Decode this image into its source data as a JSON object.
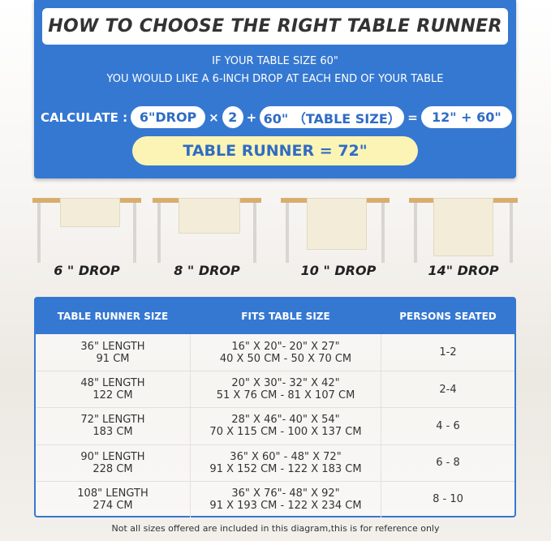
{
  "title": "HOW TO CHOOSE THE RIGHT TABLE RUNNER",
  "line1": "IF YOUR TABLE SIZE 60\"",
  "line2": "YOU WOULD LIKE A 6-INCH DROP AT EACH END OF YOUR TABLE",
  "calc": {
    "label": "CALCULATE :",
    "drop": "6\"DROP",
    "times": "×",
    "two": "2",
    "plus": "+",
    "table": "60\" （TABLE SIZE）",
    "equals": "=",
    "result": "12\" + 60\""
  },
  "runner": "TABLE RUNNER = 72\"",
  "drops": [
    "6 \" DROP",
    "8 \" DROP",
    "10 \" DROP",
    "14\" DROP"
  ],
  "table": {
    "headers": [
      "TABLE RUNNER SIZE",
      "FITS TABLE SIZE",
      "PERSONS SEATED"
    ],
    "rows": [
      {
        "len": "36\" LENGTH",
        "cm": "91 CM",
        "fit_in": "16\" X 20\"- 20\" X 27\"",
        "fit_cm": "40 X 50 CM - 50 X 70 CM",
        "persons": "1-2"
      },
      {
        "len": "48\" LENGTH",
        "cm": "122 CM",
        "fit_in": "20\" X 30\"- 32\" X 42\"",
        "fit_cm": "51 X 76 CM - 81 X 107 CM",
        "persons": "2-4"
      },
      {
        "len": "72\" LENGTH",
        "cm": "183 CM",
        "fit_in": "28\" X 46\"- 40\" X 54\"",
        "fit_cm": "70 X 115 CM - 100 X 137 CM",
        "persons": "4 - 6"
      },
      {
        "len": "90\" LENGTH",
        "cm": "228 CM",
        "fit_in": "36\" X 60\" - 48\" X 72\"",
        "fit_cm": "91 X 152 CM - 122 X 183 CM",
        "persons": "6 - 8"
      },
      {
        "len": "108\" LENGTH",
        "cm": "274 CM",
        "fit_in": "36\" X 76\"- 48\" X 92\"",
        "fit_cm": "91 X 193 CM - 122 X 234 CM",
        "persons": "8 - 10"
      }
    ]
  },
  "footnote": "Not all sizes offered are included in this diagram,this is for reference only"
}
